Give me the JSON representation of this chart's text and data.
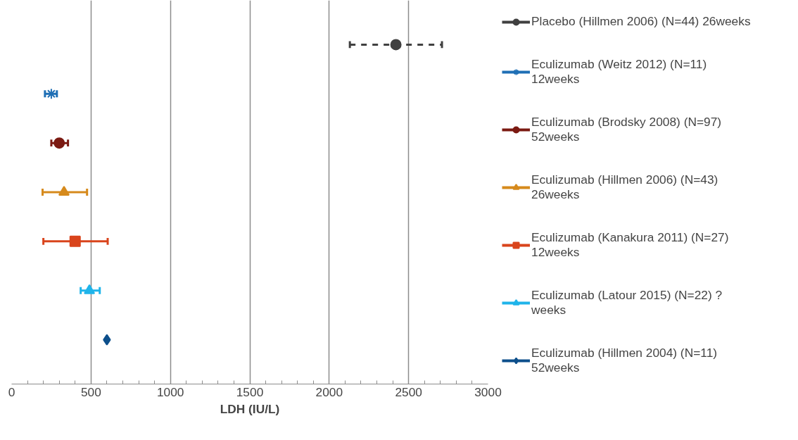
{
  "chart_data": {
    "type": "scatter",
    "orientation": "horizontal",
    "xlabel": "LDH (IU/L)",
    "categories": [
      null,
      null,
      null,
      null,
      null,
      null,
      null
    ],
    "xlim": [
      0,
      3000
    ],
    "xticks": [
      0,
      500,
      1000,
      1500,
      2000,
      2500,
      3000
    ],
    "grid": "x",
    "legend": "right",
    "series": [
      {
        "name": "Placebo (Hillmen 2006) (N=44) 26weeks",
        "color": "#404040",
        "marker": "circle",
        "line_style": "dashed",
        "values": [
          2420,
          null,
          null,
          null,
          null,
          null,
          null
        ],
        "errors": [
          [
            2130,
            2710
          ],
          null,
          null,
          null,
          null,
          null,
          null
        ]
      },
      {
        "name": "Eculizumab (Weitz 2012) (N=11) 12weeks",
        "color": "#1f6fb5",
        "marker": "cross",
        "values": [
          null,
          250,
          null,
          null,
          null,
          null,
          null
        ],
        "errors": [
          null,
          [
            210,
            285
          ],
          null,
          null,
          null,
          null,
          null
        ]
      },
      {
        "name": "Eculizumab (Brodsky 2008) (N=97) 52weeks",
        "color": "#7b1a12",
        "marker": "circle",
        "values": [
          null,
          null,
          300,
          null,
          null,
          null,
          null
        ],
        "errors": [
          null,
          null,
          [
            250,
            355
          ],
          null,
          null,
          null,
          null
        ]
      },
      {
        "name": "Eculizumab (Hillmen 2006) (N=43) 26weeks",
        "color": "#d68a1c",
        "marker": "triangle",
        "values": [
          null,
          null,
          null,
          330,
          null,
          null,
          null
        ],
        "errors": [
          null,
          null,
          null,
          [
            195,
            475
          ],
          null,
          null,
          null
        ]
      },
      {
        "name": "Eculizumab (Kanakura 2011) (N=27) 12weeks",
        "color": "#d9441c",
        "marker": "square",
        "values": [
          null,
          null,
          null,
          null,
          400,
          null,
          null
        ],
        "errors": [
          null,
          null,
          null,
          null,
          [
            200,
            605
          ],
          null,
          null
        ]
      },
      {
        "name": "Eculizumab (Latour 2015) (N=22) ? weeks",
        "color": "#1fb4ea",
        "marker": "triangle",
        "values": [
          null,
          null,
          null,
          null,
          null,
          490,
          null
        ],
        "errors": [
          null,
          null,
          null,
          null,
          null,
          [
            435,
            555
          ],
          null
        ]
      },
      {
        "name": "Eculizumab (Hillmen 2004) (N=11) 52weeks",
        "color": "#0d4f8b",
        "marker": "diamond",
        "values": [
          null,
          null,
          null,
          null,
          null,
          null,
          600
        ],
        "errors": [
          null,
          null,
          null,
          null,
          null,
          null,
          null
        ]
      }
    ]
  }
}
